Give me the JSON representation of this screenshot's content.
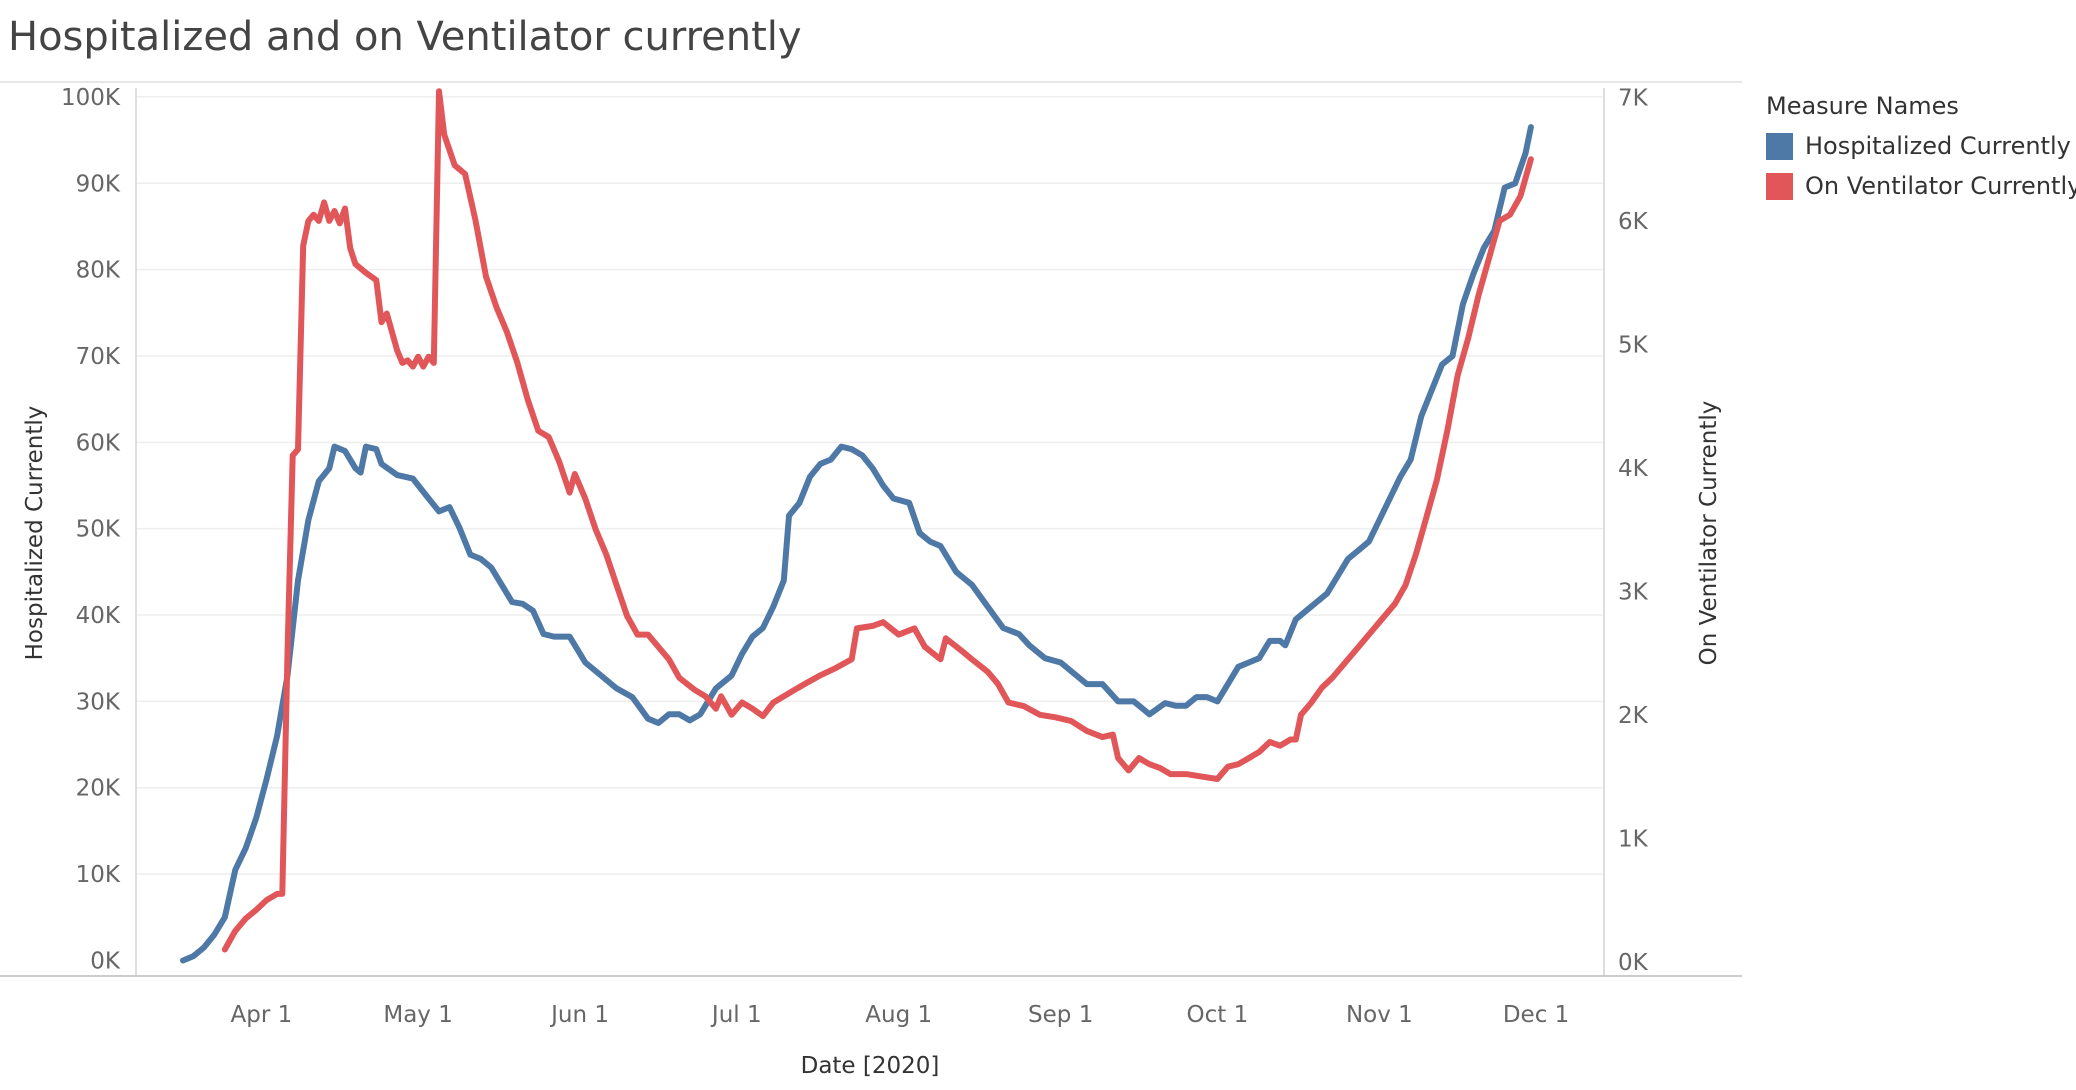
{
  "title": "Hospitalized and on Ventilator currently",
  "chart_data": {
    "type": "line",
    "title": "Hospitalized and on Ventilator currently",
    "xlabel": "Date [2020]",
    "ylabel": "Hospitalized Currently",
    "y2label": "On Ventilator Currently",
    "x_ticks": [
      "Apr 1",
      "May 1",
      "Jun 1",
      "Jul 1",
      "Aug 1",
      "Sep 1",
      "Oct 1",
      "Nov 1",
      "Dec 1"
    ],
    "x_tick_dates": [
      "2020-04-01",
      "2020-05-01",
      "2020-06-01",
      "2020-07-01",
      "2020-08-01",
      "2020-09-01",
      "2020-10-01",
      "2020-11-01",
      "2020-12-01"
    ],
    "xlim": [
      "2020-03-08",
      "2020-12-14"
    ],
    "y_ticks": [
      "0K",
      "10K",
      "20K",
      "30K",
      "40K",
      "50K",
      "60K",
      "70K",
      "80K",
      "90K",
      "100K"
    ],
    "ylim": [
      -1800,
      100800
    ],
    "y2_ticks": [
      "0K",
      "1K",
      "2K",
      "3K",
      "4K",
      "5K",
      "6K",
      "7K"
    ],
    "y2lim": [
      -115,
      7060
    ],
    "grid": true,
    "legend_title": "Measure Names",
    "legend_position": "right",
    "series": [
      {
        "name": "Hospitalized Currently",
        "axis": "left",
        "color": "#4e79a7",
        "points": [
          [
            "2020-03-17",
            0
          ],
          [
            "2020-03-19",
            500
          ],
          [
            "2020-03-21",
            1500
          ],
          [
            "2020-03-23",
            3000
          ],
          [
            "2020-03-25",
            5000
          ],
          [
            "2020-03-27",
            10500
          ],
          [
            "2020-03-29",
            13000
          ],
          [
            "2020-03-31",
            16500
          ],
          [
            "2020-04-02",
            21000
          ],
          [
            "2020-04-04",
            26000
          ],
          [
            "2020-04-06",
            33000
          ],
          [
            "2020-04-08",
            44000
          ],
          [
            "2020-04-10",
            51000
          ],
          [
            "2020-04-12",
            55500
          ],
          [
            "2020-04-14",
            57000
          ],
          [
            "2020-04-15",
            59500
          ],
          [
            "2020-04-17",
            59000
          ],
          [
            "2020-04-19",
            57000
          ],
          [
            "2020-04-20",
            56500
          ],
          [
            "2020-04-21",
            59500
          ],
          [
            "2020-04-23",
            59200
          ],
          [
            "2020-04-24",
            57500
          ],
          [
            "2020-04-27",
            56200
          ],
          [
            "2020-04-30",
            55800
          ],
          [
            "2020-05-03",
            53500
          ],
          [
            "2020-05-05",
            52000
          ],
          [
            "2020-05-07",
            52500
          ],
          [
            "2020-05-09",
            50000
          ],
          [
            "2020-05-11",
            47000
          ],
          [
            "2020-05-13",
            46500
          ],
          [
            "2020-05-15",
            45500
          ],
          [
            "2020-05-17",
            43500
          ],
          [
            "2020-05-19",
            41500
          ],
          [
            "2020-05-21",
            41300
          ],
          [
            "2020-05-23",
            40500
          ],
          [
            "2020-05-25",
            37800
          ],
          [
            "2020-05-27",
            37500
          ],
          [
            "2020-05-30",
            37500
          ],
          [
            "2020-06-02",
            34500
          ],
          [
            "2020-06-05",
            33000
          ],
          [
            "2020-06-08",
            31500
          ],
          [
            "2020-06-11",
            30500
          ],
          [
            "2020-06-14",
            28000
          ],
          [
            "2020-06-16",
            27500
          ],
          [
            "2020-06-18",
            28500
          ],
          [
            "2020-06-20",
            28500
          ],
          [
            "2020-06-22",
            27800
          ],
          [
            "2020-06-24",
            28500
          ],
          [
            "2020-06-27",
            31500
          ],
          [
            "2020-06-30",
            33000
          ],
          [
            "2020-07-02",
            35500
          ],
          [
            "2020-07-04",
            37500
          ],
          [
            "2020-07-06",
            38500
          ],
          [
            "2020-07-08",
            41000
          ],
          [
            "2020-07-10",
            44000
          ],
          [
            "2020-07-11",
            51500
          ],
          [
            "2020-07-13",
            53000
          ],
          [
            "2020-07-15",
            56000
          ],
          [
            "2020-07-17",
            57500
          ],
          [
            "2020-07-19",
            58000
          ],
          [
            "2020-07-21",
            59500
          ],
          [
            "2020-07-23",
            59200
          ],
          [
            "2020-07-25",
            58500
          ],
          [
            "2020-07-27",
            57000
          ],
          [
            "2020-07-29",
            55000
          ],
          [
            "2020-07-31",
            53500
          ],
          [
            "2020-08-03",
            53000
          ],
          [
            "2020-08-05",
            49500
          ],
          [
            "2020-08-07",
            48500
          ],
          [
            "2020-08-09",
            48000
          ],
          [
            "2020-08-12",
            45000
          ],
          [
            "2020-08-15",
            43500
          ],
          [
            "2020-08-18",
            41000
          ],
          [
            "2020-08-21",
            38500
          ],
          [
            "2020-08-24",
            37800
          ],
          [
            "2020-08-26",
            36500
          ],
          [
            "2020-08-29",
            35000
          ],
          [
            "2020-09-01",
            34500
          ],
          [
            "2020-09-04",
            33000
          ],
          [
            "2020-09-06",
            32000
          ],
          [
            "2020-09-09",
            32000
          ],
          [
            "2020-09-12",
            30000
          ],
          [
            "2020-09-15",
            30000
          ],
          [
            "2020-09-18",
            28500
          ],
          [
            "2020-09-21",
            29800
          ],
          [
            "2020-09-23",
            29500
          ],
          [
            "2020-09-25",
            29500
          ],
          [
            "2020-09-27",
            30500
          ],
          [
            "2020-09-29",
            30500
          ],
          [
            "2020-10-01",
            30000
          ],
          [
            "2020-10-03",
            32000
          ],
          [
            "2020-10-05",
            34000
          ],
          [
            "2020-10-07",
            34500
          ],
          [
            "2020-10-09",
            35000
          ],
          [
            "2020-10-11",
            37000
          ],
          [
            "2020-10-13",
            37000
          ],
          [
            "2020-10-14",
            36500
          ],
          [
            "2020-10-16",
            39500
          ],
          [
            "2020-10-18",
            40500
          ],
          [
            "2020-10-20",
            41500
          ],
          [
            "2020-10-22",
            42500
          ],
          [
            "2020-10-24",
            44500
          ],
          [
            "2020-10-26",
            46500
          ],
          [
            "2020-10-28",
            47500
          ],
          [
            "2020-10-30",
            48500
          ],
          [
            "2020-11-01",
            51000
          ],
          [
            "2020-11-03",
            53500
          ],
          [
            "2020-11-05",
            56000
          ],
          [
            "2020-11-07",
            58000
          ],
          [
            "2020-11-09",
            63000
          ],
          [
            "2020-11-11",
            66000
          ],
          [
            "2020-11-13",
            69000
          ],
          [
            "2020-11-15",
            70000
          ],
          [
            "2020-11-17",
            76000
          ],
          [
            "2020-11-19",
            79500
          ],
          [
            "2020-11-21",
            82500
          ],
          [
            "2020-11-23",
            84500
          ],
          [
            "2020-11-25",
            89500
          ],
          [
            "2020-11-27",
            90000
          ],
          [
            "2020-11-29",
            93500
          ],
          [
            "2020-11-30",
            96500
          ]
        ]
      },
      {
        "name": "On Ventilator Currently",
        "axis": "right",
        "color": "#e15759",
        "points": [
          [
            "2020-03-25",
            100
          ],
          [
            "2020-03-27",
            250
          ],
          [
            "2020-03-29",
            350
          ],
          [
            "2020-03-31",
            420
          ],
          [
            "2020-04-02",
            500
          ],
          [
            "2020-04-04",
            550
          ],
          [
            "2020-04-05",
            550
          ],
          [
            "2020-04-06",
            2500
          ],
          [
            "2020-04-07",
            4100
          ],
          [
            "2020-04-08",
            4150
          ],
          [
            "2020-04-09",
            5800
          ],
          [
            "2020-04-10",
            6000
          ],
          [
            "2020-04-11",
            6050
          ],
          [
            "2020-04-12",
            6000
          ],
          [
            "2020-04-13",
            6150
          ],
          [
            "2020-04-14",
            6000
          ],
          [
            "2020-04-15",
            6080
          ],
          [
            "2020-04-16",
            5980
          ],
          [
            "2020-04-17",
            6100
          ],
          [
            "2020-04-18",
            5780
          ],
          [
            "2020-04-19",
            5650
          ],
          [
            "2020-04-21",
            5580
          ],
          [
            "2020-04-23",
            5520
          ],
          [
            "2020-04-24",
            5180
          ],
          [
            "2020-04-25",
            5250
          ],
          [
            "2020-04-27",
            4950
          ],
          [
            "2020-04-28",
            4850
          ],
          [
            "2020-04-29",
            4870
          ],
          [
            "2020-04-30",
            4820
          ],
          [
            "2020-05-01",
            4900
          ],
          [
            "2020-05-02",
            4820
          ],
          [
            "2020-05-03",
            4900
          ],
          [
            "2020-05-04",
            4850
          ],
          [
            "2020-05-05",
            7050
          ],
          [
            "2020-05-06",
            6700
          ],
          [
            "2020-05-08",
            6450
          ],
          [
            "2020-05-10",
            6380
          ],
          [
            "2020-05-12",
            6000
          ],
          [
            "2020-05-14",
            5550
          ],
          [
            "2020-05-16",
            5300
          ],
          [
            "2020-05-18",
            5100
          ],
          [
            "2020-05-20",
            4850
          ],
          [
            "2020-05-22",
            4550
          ],
          [
            "2020-05-24",
            4300
          ],
          [
            "2020-05-26",
            4250
          ],
          [
            "2020-05-28",
            4050
          ],
          [
            "2020-05-30",
            3800
          ],
          [
            "2020-05-31",
            3950
          ],
          [
            "2020-06-02",
            3750
          ],
          [
            "2020-06-04",
            3500
          ],
          [
            "2020-06-06",
            3300
          ],
          [
            "2020-06-08",
            3050
          ],
          [
            "2020-06-10",
            2800
          ],
          [
            "2020-06-12",
            2650
          ],
          [
            "2020-06-14",
            2650
          ],
          [
            "2020-06-16",
            2550
          ],
          [
            "2020-06-18",
            2450
          ],
          [
            "2020-06-20",
            2300
          ],
          [
            "2020-06-23",
            2200
          ],
          [
            "2020-06-25",
            2150
          ],
          [
            "2020-06-27",
            2050
          ],
          [
            "2020-06-28",
            2150
          ],
          [
            "2020-06-30",
            2000
          ],
          [
            "2020-07-02",
            2100
          ],
          [
            "2020-07-04",
            2050
          ],
          [
            "2020-07-06",
            1990
          ],
          [
            "2020-07-08",
            2100
          ],
          [
            "2020-07-10",
            2150
          ],
          [
            "2020-07-12",
            2200
          ],
          [
            "2020-07-14",
            2250
          ],
          [
            "2020-07-17",
            2320
          ],
          [
            "2020-07-20",
            2380
          ],
          [
            "2020-07-23",
            2450
          ],
          [
            "2020-07-24",
            2700
          ],
          [
            "2020-07-27",
            2720
          ],
          [
            "2020-07-29",
            2750
          ],
          [
            "2020-08-01",
            2650
          ],
          [
            "2020-08-04",
            2700
          ],
          [
            "2020-08-06",
            2550
          ],
          [
            "2020-08-09",
            2450
          ],
          [
            "2020-08-10",
            2620
          ],
          [
            "2020-08-13",
            2520
          ],
          [
            "2020-08-15",
            2450
          ],
          [
            "2020-08-18",
            2350
          ],
          [
            "2020-08-20",
            2250
          ],
          [
            "2020-08-22",
            2100
          ],
          [
            "2020-08-25",
            2070
          ],
          [
            "2020-08-28",
            2000
          ],
          [
            "2020-08-31",
            1980
          ],
          [
            "2020-09-03",
            1950
          ],
          [
            "2020-09-06",
            1870
          ],
          [
            "2020-09-09",
            1820
          ],
          [
            "2020-09-11",
            1840
          ],
          [
            "2020-09-12",
            1650
          ],
          [
            "2020-09-14",
            1550
          ],
          [
            "2020-09-16",
            1650
          ],
          [
            "2020-09-18",
            1600
          ],
          [
            "2020-09-20",
            1570
          ],
          [
            "2020-09-22",
            1520
          ],
          [
            "2020-09-25",
            1520
          ],
          [
            "2020-09-28",
            1500
          ],
          [
            "2020-10-01",
            1480
          ],
          [
            "2020-10-03",
            1580
          ],
          [
            "2020-10-05",
            1600
          ],
          [
            "2020-10-07",
            1650
          ],
          [
            "2020-10-09",
            1700
          ],
          [
            "2020-10-11",
            1780
          ],
          [
            "2020-10-13",
            1750
          ],
          [
            "2020-10-15",
            1800
          ],
          [
            "2020-10-16",
            1800
          ],
          [
            "2020-10-17",
            2000
          ],
          [
            "2020-10-19",
            2100
          ],
          [
            "2020-10-21",
            2220
          ],
          [
            "2020-10-23",
            2300
          ],
          [
            "2020-10-25",
            2400
          ],
          [
            "2020-10-28",
            2550
          ],
          [
            "2020-10-31",
            2700
          ],
          [
            "2020-11-02",
            2800
          ],
          [
            "2020-11-04",
            2900
          ],
          [
            "2020-11-06",
            3050
          ],
          [
            "2020-11-08",
            3300
          ],
          [
            "2020-11-10",
            3600
          ],
          [
            "2020-11-12",
            3900
          ],
          [
            "2020-11-14",
            4300
          ],
          [
            "2020-11-16",
            4750
          ],
          [
            "2020-11-18",
            5050
          ],
          [
            "2020-11-20",
            5400
          ],
          [
            "2020-11-22",
            5700
          ],
          [
            "2020-11-24",
            6000
          ],
          [
            "2020-11-26",
            6050
          ],
          [
            "2020-11-28",
            6200
          ],
          [
            "2020-11-30",
            6500
          ]
        ]
      }
    ]
  }
}
